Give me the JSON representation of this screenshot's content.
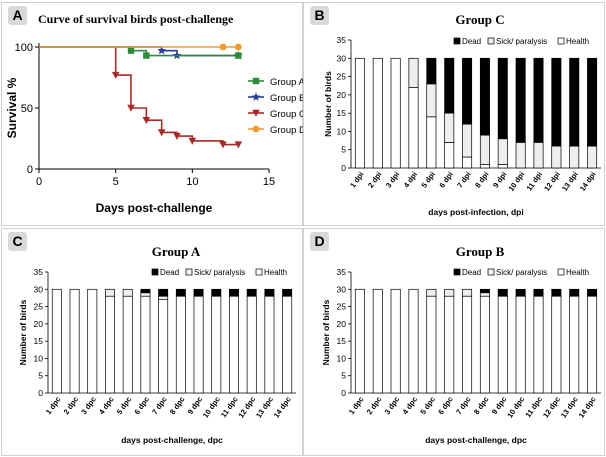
{
  "panels": {
    "a": {
      "letter": "A"
    },
    "b": {
      "letter": "B"
    },
    "c": {
      "letter": "C"
    },
    "d": {
      "letter": "D"
    }
  },
  "legend_labels": {
    "dead": "Dead",
    "sick": "Sick/ paralysis",
    "health": "Health"
  },
  "chart_data": [
    {
      "type": "line",
      "title": "Curve of survival birds post-challenge",
      "xlabel": "Days post-challenge",
      "ylabel": "Survival %",
      "xlim": [
        0,
        15
      ],
      "ylim": [
        0,
        100
      ],
      "xticks": [
        0,
        5,
        10,
        15
      ],
      "yticks": [
        0,
        50,
        100
      ],
      "legend_position": "right",
      "series": [
        {
          "name": "Group A",
          "color": "#2e8b3c",
          "marker": "square",
          "x": [
            0,
            6,
            7,
            13
          ],
          "y": [
            100,
            97,
            93,
            93
          ]
        },
        {
          "name": "Group B",
          "color": "#2a3f9d",
          "marker": "star",
          "x": [
            0,
            8,
            9,
            13
          ],
          "y": [
            100,
            97,
            93,
            93
          ]
        },
        {
          "name": "Group C",
          "color": "#a52a2a",
          "marker": "triangle-down",
          "x": [
            0,
            5,
            6,
            7,
            8,
            9,
            10,
            12,
            13
          ],
          "y": [
            100,
            77,
            50,
            40,
            30,
            27,
            23,
            20,
            20
          ]
        },
        {
          "name": "Group D",
          "color": "#f29c2b",
          "marker": "circle",
          "x": [
            0,
            12,
            13
          ],
          "y": [
            100,
            100,
            100
          ]
        }
      ]
    },
    {
      "type": "bar",
      "stacked": true,
      "title": "Group C",
      "xlabel": "days post-infection, dpi",
      "ylabel": "Number of birds",
      "ylim": [
        0,
        35
      ],
      "yticks": [
        0,
        5,
        10,
        15,
        20,
        25,
        30,
        35
      ],
      "legend_position": "top",
      "categories": [
        "1 dpi",
        "2 dpi",
        "3 dpi",
        "4 dpi",
        "5 dpi",
        "6 dpi",
        "7 dpi",
        "8 dpi",
        "9 dpi",
        "10 dpi",
        "11 dpi",
        "12 dpi",
        "13 dpi",
        "14 dpi"
      ],
      "series": [
        {
          "name": "Health",
          "color": "#ffffff",
          "values": [
            30,
            30,
            30,
            22,
            14,
            7,
            3,
            1,
            1,
            0,
            0,
            0,
            0,
            0
          ]
        },
        {
          "name": "Sick/ paralysis",
          "color": "#eeeeee",
          "values": [
            0,
            0,
            0,
            8,
            9,
            8,
            9,
            8,
            7,
            7,
            7,
            6,
            6,
            6
          ]
        },
        {
          "name": "Dead",
          "color": "#000000",
          "values": [
            0,
            0,
            0,
            0,
            7,
            15,
            18,
            21,
            22,
            23,
            23,
            24,
            24,
            24
          ]
        }
      ]
    },
    {
      "type": "bar",
      "stacked": true,
      "title": "Group A",
      "xlabel": "days post-challenge, dpc",
      "ylabel": "Number of birds",
      "ylim": [
        0,
        35
      ],
      "yticks": [
        0,
        5,
        10,
        15,
        20,
        25,
        30,
        35
      ],
      "legend_position": "top",
      "categories": [
        "1 dpc",
        "2 dpc",
        "3 dpc",
        "4 dpc",
        "5 dpc",
        "6 dpc",
        "7 dpc",
        "8 dpc",
        "9 dpc",
        "10 dpc",
        "11 dpc",
        "12 dpc",
        "13 dpc",
        "14 dpc"
      ],
      "series": [
        {
          "name": "Health",
          "color": "#ffffff",
          "values": [
            30,
            30,
            30,
            28,
            28,
            28,
            27,
            28,
            28,
            28,
            28,
            28,
            28,
            28
          ]
        },
        {
          "name": "Sick/ paralysis",
          "color": "#eeeeee",
          "values": [
            0,
            0,
            0,
            2,
            2,
            1,
            1,
            0,
            0,
            0,
            0,
            0,
            0,
            0
          ]
        },
        {
          "name": "Dead",
          "color": "#000000",
          "values": [
            0,
            0,
            0,
            0,
            0,
            1,
            2,
            2,
            2,
            2,
            2,
            2,
            2,
            2
          ]
        }
      ]
    },
    {
      "type": "bar",
      "stacked": true,
      "title": "Group B",
      "xlabel": "days post-challenge, dpc",
      "ylabel": "Number of birds",
      "ylim": [
        0,
        35
      ],
      "yticks": [
        0,
        5,
        10,
        15,
        20,
        25,
        30,
        35
      ],
      "legend_position": "top",
      "categories": [
        "1 dpc",
        "2 dpc",
        "3 dpc",
        "4 dpc",
        "5 dpc",
        "6 dpc",
        "7 dpc",
        "8 dpc",
        "9 dpc",
        "10 dpc",
        "11 dpc",
        "12 dpc",
        "13 dpc",
        "14 dpc"
      ],
      "series": [
        {
          "name": "Health",
          "color": "#ffffff",
          "values": [
            30,
            30,
            30,
            30,
            28,
            28,
            28,
            28,
            28,
            28,
            28,
            28,
            28,
            28
          ]
        },
        {
          "name": "Sick/ paralysis",
          "color": "#eeeeee",
          "values": [
            0,
            0,
            0,
            0,
            2,
            2,
            2,
            1,
            0,
            0,
            0,
            0,
            0,
            0
          ]
        },
        {
          "name": "Dead",
          "color": "#000000",
          "values": [
            0,
            0,
            0,
            0,
            0,
            0,
            0,
            1,
            2,
            2,
            2,
            2,
            2,
            2
          ]
        }
      ]
    }
  ]
}
